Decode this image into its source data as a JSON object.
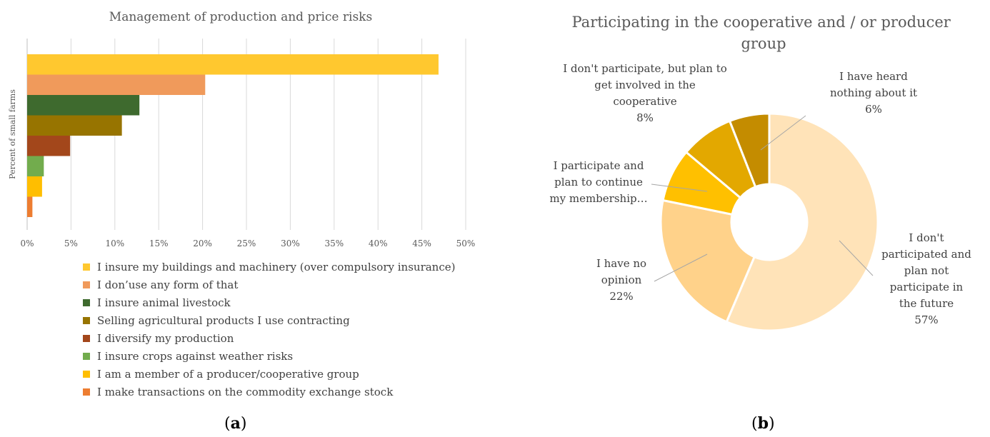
{
  "chart_data": [
    {
      "type": "bar",
      "orientation": "horizontal",
      "title": "Management of production and price risks",
      "ylabel": "Percent of small farms",
      "xlim": [
        0,
        50
      ],
      "ticks": [
        "0%",
        "5%",
        "10%",
        "15%",
        "20%",
        "25%",
        "30%",
        "35%",
        "40%",
        "45%",
        "50%"
      ],
      "grid": true,
      "legend_position": "bottom",
      "categories": [
        "I insure my buildings and machinery (over compulsory insurance)",
        "I don’use any form of that",
        "I insure animal livestock",
        "Selling agricultural products I use contracting",
        "I diversify my production",
        "I insure crops against weather risks",
        "I am a member of a producer/cooperative group",
        "I make transactions on the commodity exchange stock"
      ],
      "values": [
        46.9,
        20.3,
        12.8,
        10.8,
        4.9,
        1.9,
        1.7,
        0.6
      ],
      "colors": [
        "#FFC82F",
        "#F09A5B",
        "#3E6A2E",
        "#977400",
        "#A3471B",
        "#72AC4D",
        "#FFBE00",
        "#ED7D31"
      ]
    },
    {
      "type": "pie",
      "donut": true,
      "title": "Participating in the cooperative and / or producer group",
      "slices": [
        {
          "label": "I don't participated and plan not participate in the future",
          "value": 57,
          "value_label": "57%",
          "color": "#FFE3B8"
        },
        {
          "label": "I have no opinion",
          "value": 22,
          "value_label": "22%",
          "color": "#FFD28A"
        },
        {
          "label": "I participate and plan to continue my membership…",
          "value": 8,
          "value_label": "",
          "color": "#FFC000"
        },
        {
          "label": "I don't participate, but plan to get involved in the cooperative",
          "value": 8,
          "value_label": "8%",
          "color": "#E3A800"
        },
        {
          "label": "I have heard nothing about it",
          "value": 6,
          "value_label": "6%",
          "color": "#C48C00"
        }
      ]
    }
  ],
  "captions": {
    "a": "a",
    "b": "b"
  }
}
